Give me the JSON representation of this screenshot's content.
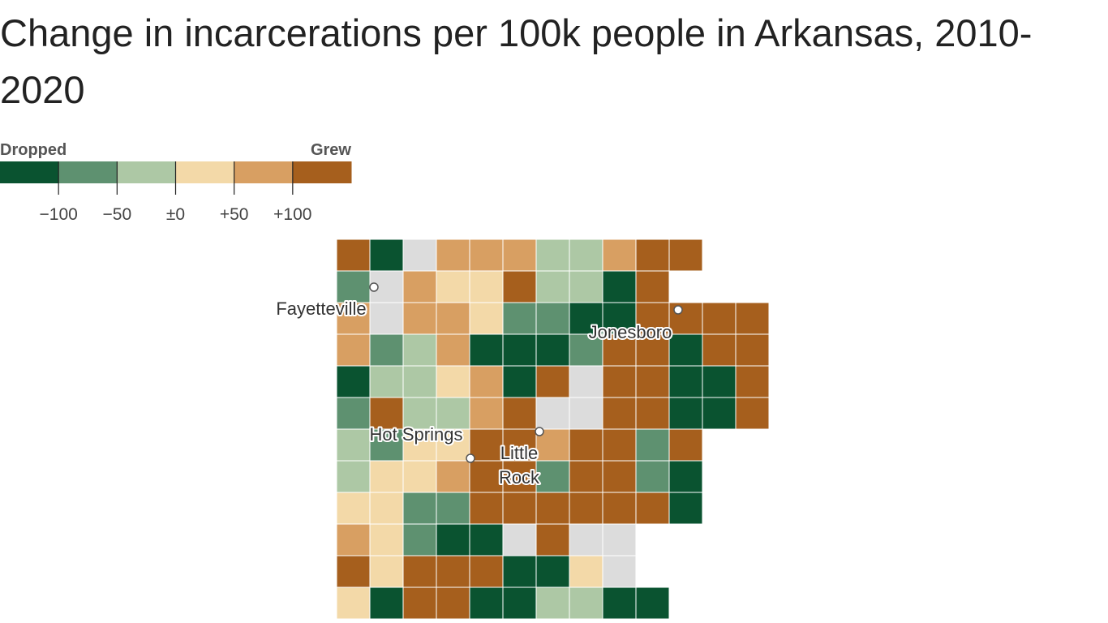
{
  "title": "Change in incarcerations per 100k people in Arkansas, 2010-2020",
  "legend": {
    "low_label": "Dropped",
    "high_label": "Grew",
    "colors": [
      "#0a5330",
      "#5e9170",
      "#adc8a5",
      "#f3d9a8",
      "#d89f62",
      "#a65f1d"
    ],
    "xlim": [
      -150,
      150
    ],
    "ticks": [
      {
        "value": -100,
        "label": "−100"
      },
      {
        "value": -50,
        "label": "−50"
      },
      {
        "value": 0,
        "label": "±0"
      },
      {
        "value": 50,
        "label": "+50"
      },
      {
        "value": 100,
        "label": "+100"
      }
    ]
  },
  "cities": [
    {
      "label_lines": [
        "Fayetteville"
      ]
    },
    {
      "label_lines": [
        "Jonesboro"
      ]
    },
    {
      "label_lines": [
        "Hot Springs"
      ]
    },
    {
      "label_lines": [
        "Little",
        "Rock"
      ]
    }
  ]
}
